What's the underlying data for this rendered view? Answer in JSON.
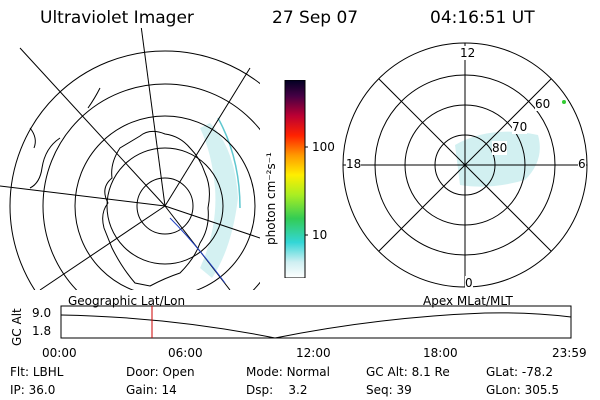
{
  "header": {
    "instrument": "Ultraviolet Imager",
    "date": "27 Sep 07",
    "time": "04:16:51 UT"
  },
  "colorbar": {
    "unit_label": "photon cm⁻²s⁻¹",
    "tick_labels": [
      "100",
      "10"
    ]
  },
  "polar_plot": {
    "mlt_labels": {
      "top": "12",
      "left": "18",
      "right": "6",
      "bottom": "0"
    },
    "lat_labels": [
      "60",
      "70",
      "80"
    ]
  },
  "timeline": {
    "left_label": "Geographic Lat/Lon",
    "right_label": "Apex MLat/MLT",
    "y_axis_label": "GC Alt",
    "y_ticks": [
      "9.0",
      "1.8"
    ],
    "x_ticks": [
      "00:00",
      "06:00",
      "12:00",
      "18:00",
      "23:59"
    ],
    "current_time_marker_hours": 4.28
  },
  "info": {
    "row1": [
      {
        "key": "Flt:",
        "value": "LBHL"
      },
      {
        "key": "Door:",
        "value": "Open"
      },
      {
        "key": "Mode:",
        "value": "Normal"
      },
      {
        "key": "GC Alt:",
        "value": "8.1 Re"
      },
      {
        "key": "GLat:",
        "value": "-78.2"
      }
    ],
    "row2": [
      {
        "key": "IP:",
        "value": "36.0"
      },
      {
        "key": "Gain:",
        "value": "14"
      },
      {
        "key": "Dsp:",
        "value": "3.2"
      },
      {
        "key": "Seq:",
        "value": "39"
      },
      {
        "key": "GLon:",
        "value": "305.5"
      }
    ]
  },
  "colors": {
    "marker": "#cc0000",
    "aurora": "#bfe9ec"
  }
}
